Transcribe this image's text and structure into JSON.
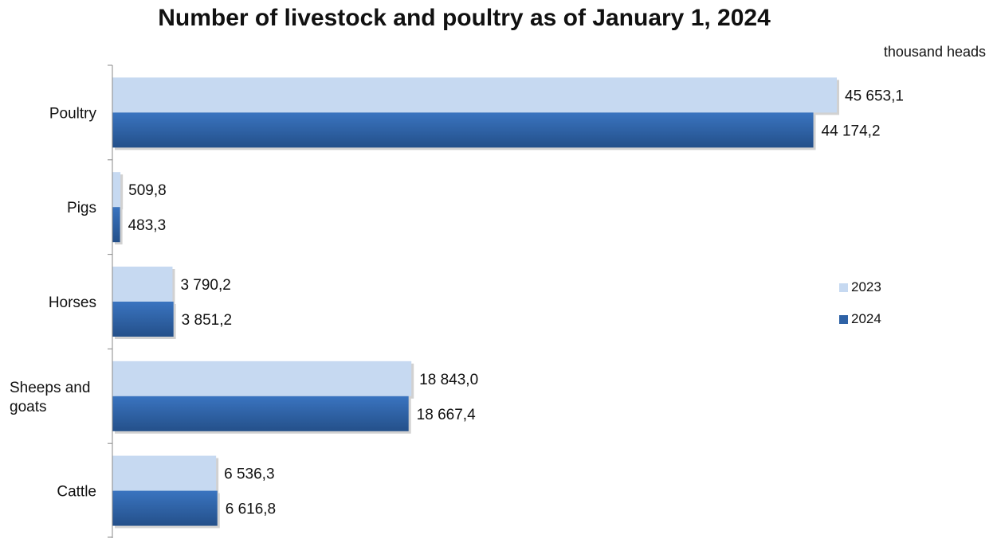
{
  "chart_data": {
    "type": "bar",
    "orientation": "horizontal",
    "title": "Number of livestock and poultry as of January 1, 2024",
    "unit": "thousand heads",
    "categories": [
      "Poultry",
      "Pigs",
      "Horses",
      "Sheeps and goats",
      "Cattle"
    ],
    "series": [
      {
        "name": "2023",
        "color": "#c6d9f1",
        "values": [
          45653.1,
          509.8,
          3790.2,
          18843.0,
          6536.3
        ],
        "labels": [
          "45 653,1",
          "509,8",
          "3 790,2",
          "18 843,0",
          "6 536,3"
        ]
      },
      {
        "name": "2024",
        "color": "#2e62a6",
        "values": [
          44174.2,
          483.3,
          3851.2,
          18667.4,
          6616.8
        ],
        "labels": [
          "44 174,2",
          "483,3",
          "3 851,2",
          "18 667,4",
          "6 616,8"
        ]
      }
    ],
    "xlim": [
      0,
      46000
    ],
    "grid": false,
    "legend_position": "right"
  }
}
